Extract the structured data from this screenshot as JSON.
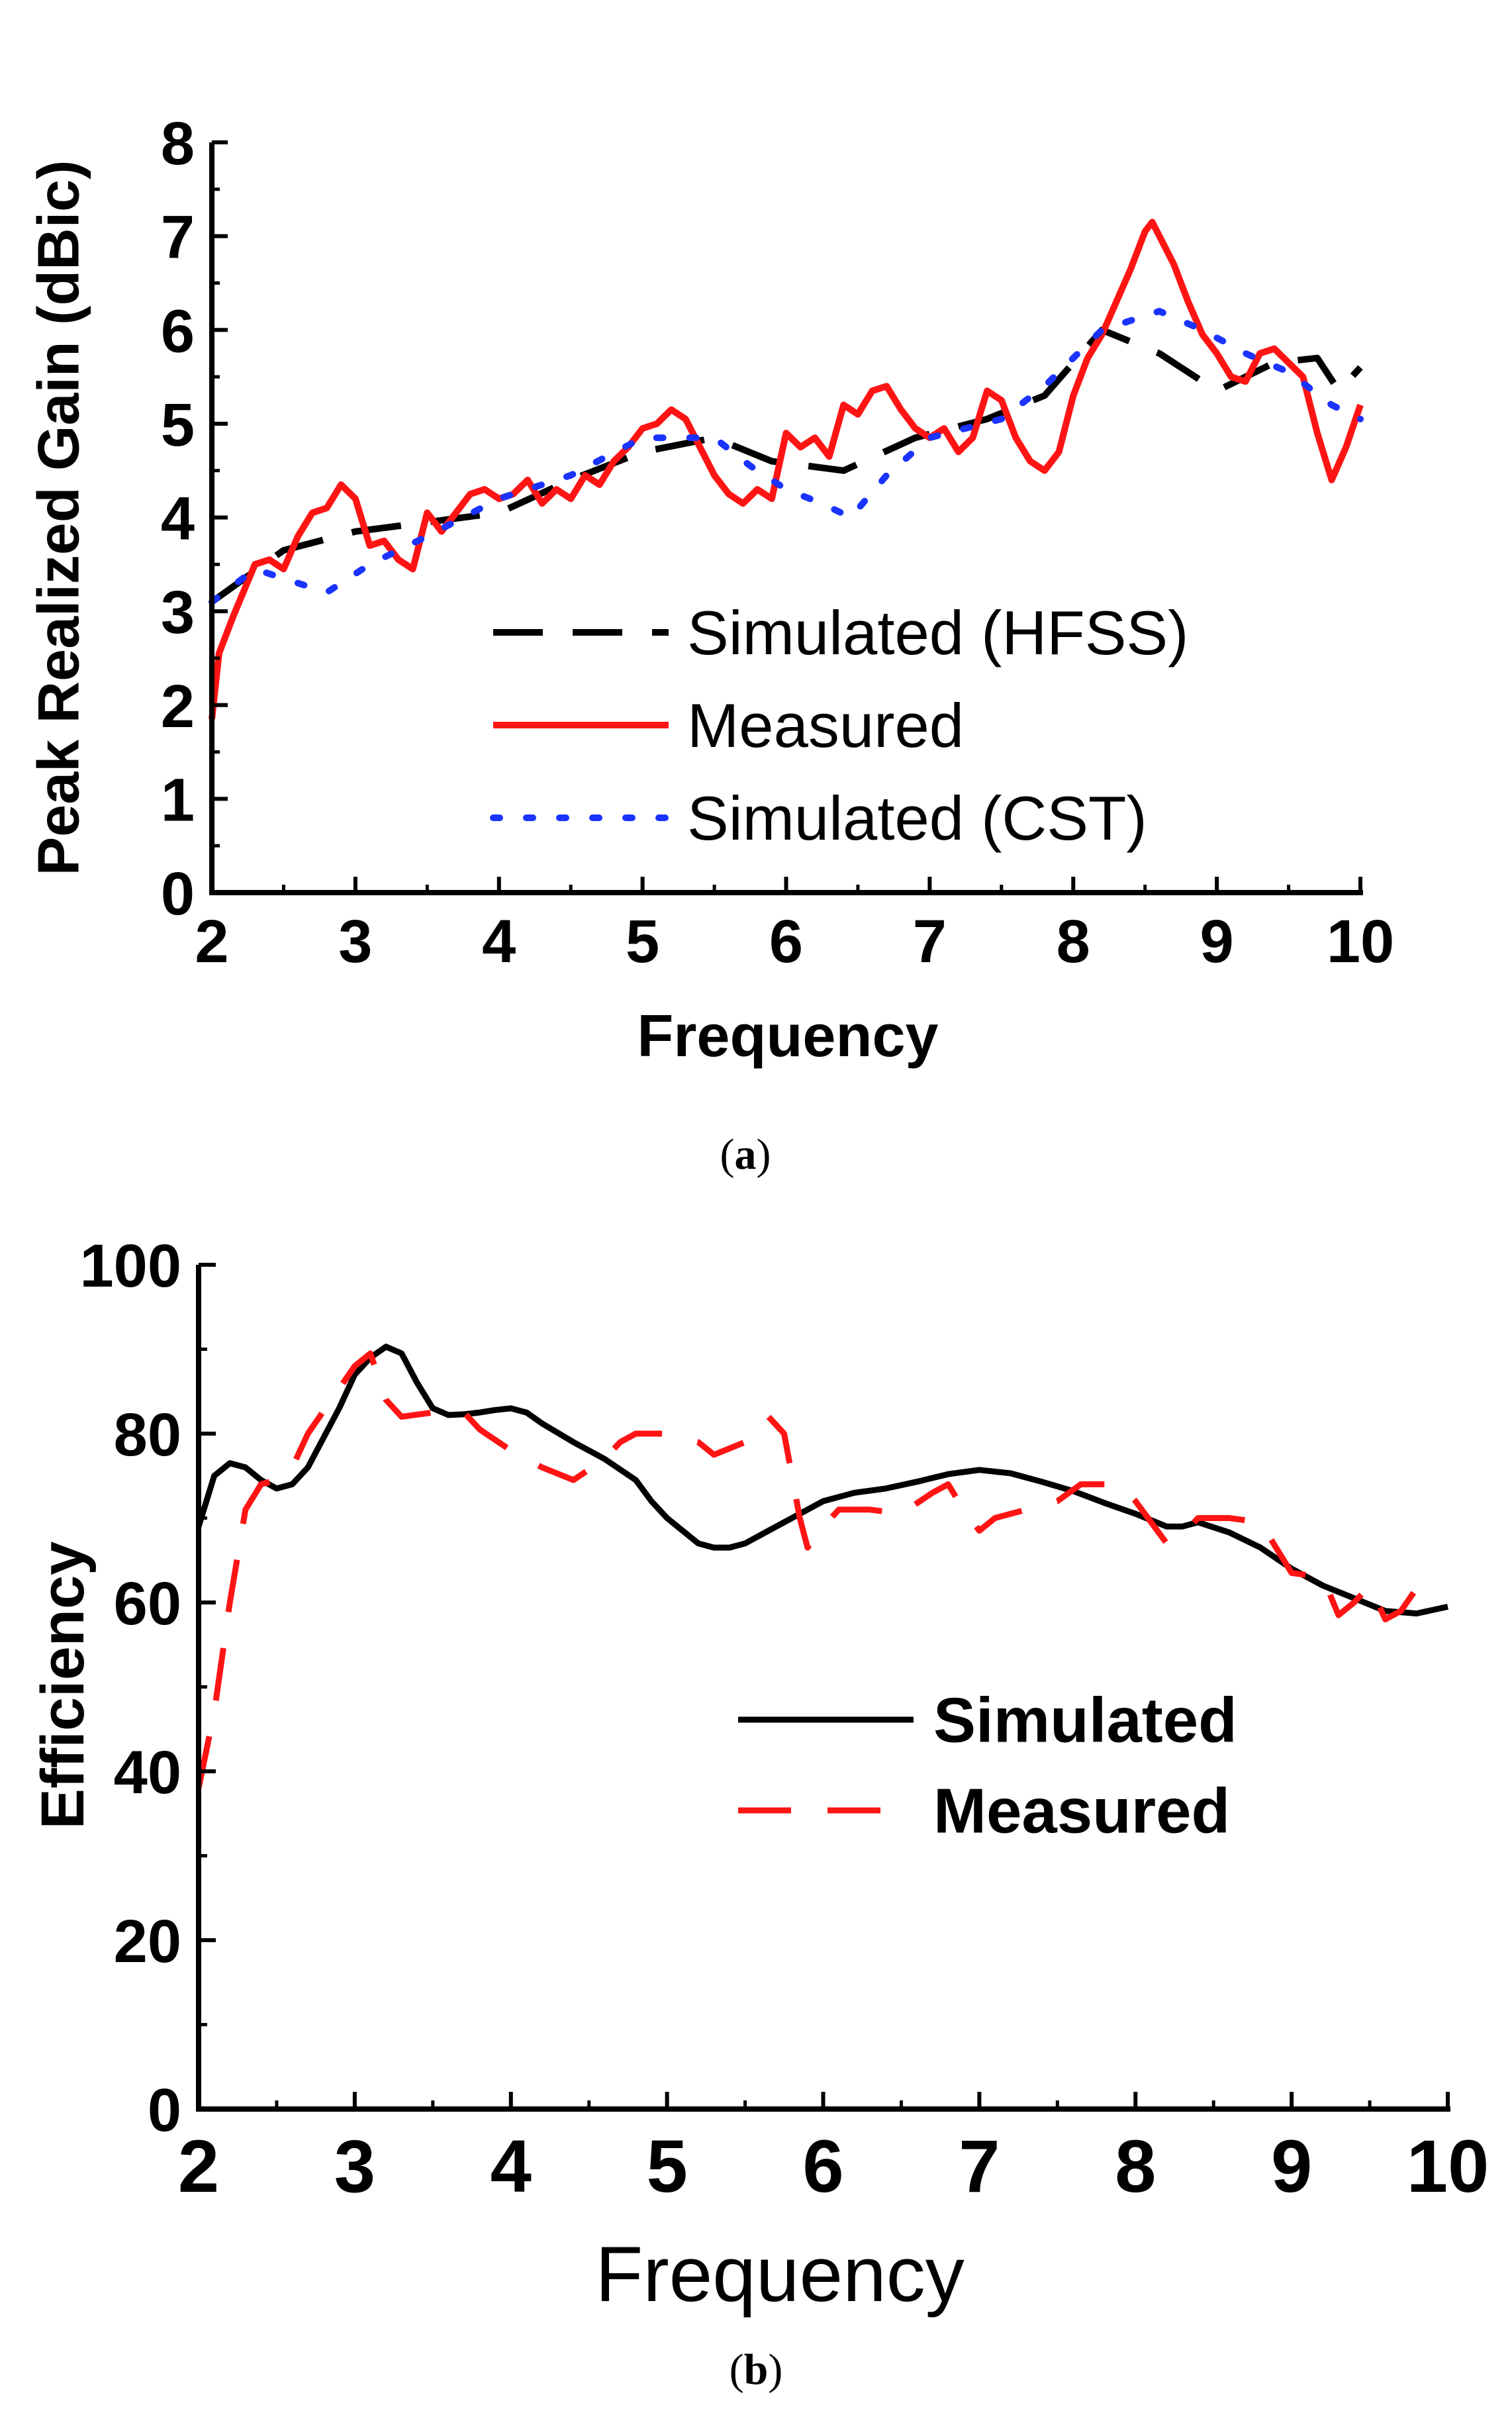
{
  "chart_data": [
    {
      "type": "line",
      "panel_label": "a",
      "xlabel": "Frequency",
      "ylabel": "Peak Realized Gain (dBic)",
      "xlim": [
        2,
        10
      ],
      "ylim": [
        0,
        8
      ],
      "xticks": [
        "2",
        "3",
        "4",
        "5",
        "6",
        "7",
        "8",
        "9",
        "10"
      ],
      "yticks": [
        "0",
        "1",
        "2",
        "3",
        "4",
        "5",
        "6",
        "7",
        "8"
      ],
      "legend_position": "center-right",
      "series": [
        {
          "name": "Simulated (HFSS)",
          "color": "#000000",
          "style": "dashed",
          "points": [
            [
              2.0,
              3.1
            ],
            [
              2.5,
              3.65
            ],
            [
              3.0,
              3.85
            ],
            [
              3.5,
              3.95
            ],
            [
              4.0,
              4.05
            ],
            [
              4.5,
              4.4
            ],
            [
              5.0,
              4.7
            ],
            [
              5.5,
              4.85
            ],
            [
              5.9,
              4.6
            ],
            [
              6.4,
              4.5
            ],
            [
              6.9,
              4.85
            ],
            [
              7.4,
              5.05
            ],
            [
              7.8,
              5.3
            ],
            [
              8.2,
              6.0
            ],
            [
              8.6,
              5.75
            ],
            [
              9.0,
              5.35
            ],
            [
              9.4,
              5.65
            ],
            [
              9.7,
              5.7
            ],
            [
              9.85,
              5.35
            ],
            [
              10.0,
              5.6
            ]
          ]
        },
        {
          "name": "Measured",
          "color": "#ff1414",
          "style": "solid",
          "points": [
            [
              2.0,
              1.85
            ],
            [
              2.05,
              2.55
            ],
            [
              2.15,
              2.95
            ],
            [
              2.3,
              3.5
            ],
            [
              2.4,
              3.55
            ],
            [
              2.5,
              3.45
            ],
            [
              2.6,
              3.8
            ],
            [
              2.7,
              4.05
            ],
            [
              2.8,
              4.1
            ],
            [
              2.9,
              4.35
            ],
            [
              3.0,
              4.2
            ],
            [
              3.1,
              3.7
            ],
            [
              3.2,
              3.75
            ],
            [
              3.3,
              3.55
            ],
            [
              3.4,
              3.45
            ],
            [
              3.5,
              4.05
            ],
            [
              3.6,
              3.85
            ],
            [
              3.7,
              4.05
            ],
            [
              3.8,
              4.25
            ],
            [
              3.9,
              4.3
            ],
            [
              4.0,
              4.2
            ],
            [
              4.1,
              4.25
            ],
            [
              4.2,
              4.4
            ],
            [
              4.3,
              4.15
            ],
            [
              4.4,
              4.3
            ],
            [
              4.5,
              4.2
            ],
            [
              4.6,
              4.45
            ],
            [
              4.7,
              4.35
            ],
            [
              4.8,
              4.6
            ],
            [
              4.9,
              4.75
            ],
            [
              5.0,
              4.95
            ],
            [
              5.1,
              5.0
            ],
            [
              5.2,
              5.15
            ],
            [
              5.3,
              5.05
            ],
            [
              5.4,
              4.75
            ],
            [
              5.5,
              4.45
            ],
            [
              5.6,
              4.25
            ],
            [
              5.7,
              4.15
            ],
            [
              5.8,
              4.3
            ],
            [
              5.9,
              4.2
            ],
            [
              6.0,
              4.9
            ],
            [
              6.1,
              4.75
            ],
            [
              6.2,
              4.85
            ],
            [
              6.3,
              4.65
            ],
            [
              6.4,
              5.2
            ],
            [
              6.5,
              5.1
            ],
            [
              6.6,
              5.35
            ],
            [
              6.7,
              5.4
            ],
            [
              6.8,
              5.15
            ],
            [
              6.9,
              4.95
            ],
            [
              7.0,
              4.85
            ],
            [
              7.1,
              4.95
            ],
            [
              7.2,
              4.7
            ],
            [
              7.3,
              4.85
            ],
            [
              7.4,
              5.35
            ],
            [
              7.5,
              5.25
            ],
            [
              7.6,
              4.85
            ],
            [
              7.7,
              4.6
            ],
            [
              7.8,
              4.5
            ],
            [
              7.9,
              4.7
            ],
            [
              8.0,
              5.3
            ],
            [
              8.1,
              5.7
            ],
            [
              8.2,
              5.95
            ],
            [
              8.3,
              6.3
            ],
            [
              8.4,
              6.65
            ],
            [
              8.5,
              7.05
            ],
            [
              8.55,
              7.15
            ],
            [
              8.6,
              7.0
            ],
            [
              8.7,
              6.7
            ],
            [
              8.8,
              6.3
            ],
            [
              8.9,
              5.95
            ],
            [
              9.0,
              5.75
            ],
            [
              9.1,
              5.5
            ],
            [
              9.2,
              5.45
            ],
            [
              9.3,
              5.75
            ],
            [
              9.4,
              5.8
            ],
            [
              9.5,
              5.65
            ],
            [
              9.6,
              5.5
            ],
            [
              9.7,
              4.9
            ],
            [
              9.8,
              4.4
            ],
            [
              9.9,
              4.75
            ],
            [
              10.0,
              5.2
            ]
          ]
        },
        {
          "name": "Simulated (CST)",
          "color": "#1a33ff",
          "style": "dotted",
          "points": [
            [
              2.0,
              3.1
            ],
            [
              2.3,
              3.45
            ],
            [
              2.6,
              3.3
            ],
            [
              2.8,
              3.2
            ],
            [
              3.1,
              3.5
            ],
            [
              3.5,
              3.8
            ],
            [
              4.0,
              4.2
            ],
            [
              4.5,
              4.45
            ],
            [
              5.0,
              4.85
            ],
            [
              5.5,
              4.85
            ],
            [
              5.75,
              4.55
            ],
            [
              6.0,
              4.3
            ],
            [
              6.25,
              4.15
            ],
            [
              6.45,
              4.0
            ],
            [
              6.7,
              4.45
            ],
            [
              7.0,
              4.85
            ],
            [
              7.5,
              5.05
            ],
            [
              7.8,
              5.4
            ],
            [
              8.2,
              6.0
            ],
            [
              8.6,
              6.2
            ],
            [
              8.9,
              6.0
            ],
            [
              9.2,
              5.75
            ],
            [
              9.5,
              5.55
            ],
            [
              9.8,
              5.2
            ],
            [
              10.0,
              5.05
            ]
          ]
        }
      ]
    },
    {
      "type": "line",
      "panel_label": "b",
      "xlabel": "Frequency",
      "ylabel": "Efficiency",
      "xlim": [
        2,
        10
      ],
      "ylim": [
        0,
        100
      ],
      "xticks": [
        "2",
        "3",
        "4",
        "5",
        "6",
        "7",
        "8",
        "9",
        "10"
      ],
      "yticks": [
        "0",
        "20",
        "40",
        "60",
        "80",
        "100"
      ],
      "legend_position": "center-right",
      "series": [
        {
          "name": "Simulated",
          "color": "#000000",
          "style": "solid",
          "points": [
            [
              2.0,
              69
            ],
            [
              2.1,
              75
            ],
            [
              2.2,
              76.5
            ],
            [
              2.3,
              76
            ],
            [
              2.4,
              74.5
            ],
            [
              2.5,
              73.5
            ],
            [
              2.6,
              74
            ],
            [
              2.7,
              76
            ],
            [
              2.8,
              79.5
            ],
            [
              2.9,
              83
            ],
            [
              3.0,
              87
            ],
            [
              3.1,
              89
            ],
            [
              3.2,
              90.3
            ],
            [
              3.3,
              89.5
            ],
            [
              3.4,
              86
            ],
            [
              3.5,
              83
            ],
            [
              3.6,
              82.2
            ],
            [
              3.7,
              82.3
            ],
            [
              3.8,
              82.5
            ],
            [
              3.9,
              82.8
            ],
            [
              4.0,
              83
            ],
            [
              4.1,
              82.5
            ],
            [
              4.2,
              81.2
            ],
            [
              4.4,
              79
            ],
            [
              4.6,
              77
            ],
            [
              4.8,
              74.5
            ],
            [
              4.9,
              72
            ],
            [
              5.0,
              70
            ],
            [
              5.1,
              68.5
            ],
            [
              5.2,
              67
            ],
            [
              5.3,
              66.5
            ],
            [
              5.4,
              66.5
            ],
            [
              5.5,
              67
            ],
            [
              5.6,
              68
            ],
            [
              5.8,
              70
            ],
            [
              6.0,
              72
            ],
            [
              6.2,
              73
            ],
            [
              6.4,
              73.5
            ],
            [
              6.6,
              74.3
            ],
            [
              6.8,
              75.2
            ],
            [
              7.0,
              75.7
            ],
            [
              7.2,
              75.3
            ],
            [
              7.4,
              74.3
            ],
            [
              7.6,
              73.2
            ],
            [
              7.8,
              71.8
            ],
            [
              8.0,
              70.5
            ],
            [
              8.2,
              69
            ],
            [
              8.3,
              69
            ],
            [
              8.4,
              69.5
            ],
            [
              8.6,
              68.3
            ],
            [
              8.8,
              66.5
            ],
            [
              9.0,
              64
            ],
            [
              9.2,
              62
            ],
            [
              9.4,
              60.5
            ],
            [
              9.6,
              59
            ],
            [
              9.8,
              58.7
            ],
            [
              10.0,
              59.5
            ]
          ]
        },
        {
          "name": "Measured",
          "color": "#ff1414",
          "style": "dashed",
          "points": [
            [
              2.0,
              38
            ],
            [
              2.1,
              47
            ],
            [
              2.2,
              60
            ],
            [
              2.3,
              71
            ],
            [
              2.4,
              74
            ],
            [
              2.5,
              74.5
            ],
            [
              2.6,
              76
            ],
            [
              2.7,
              80
            ],
            [
              2.85,
              84
            ],
            [
              3.0,
              88
            ],
            [
              3.1,
              89.5
            ],
            [
              3.2,
              84
            ],
            [
              3.3,
              82
            ],
            [
              3.5,
              82.5
            ],
            [
              3.7,
              82.5
            ],
            [
              3.8,
              80.5
            ],
            [
              4.0,
              78
            ],
            [
              4.2,
              76
            ],
            [
              4.4,
              74.5
            ],
            [
              4.6,
              77
            ],
            [
              4.7,
              79
            ],
            [
              4.8,
              80
            ],
            [
              5.0,
              80
            ],
            [
              5.2,
              79
            ],
            [
              5.3,
              77.5
            ],
            [
              5.5,
              79
            ],
            [
              5.65,
              82
            ],
            [
              5.75,
              80
            ],
            [
              5.85,
              70
            ],
            [
              5.9,
              66.5
            ],
            [
              6.0,
              69
            ],
            [
              6.1,
              71
            ],
            [
              6.3,
              71
            ],
            [
              6.5,
              70.5
            ],
            [
              6.7,
              73
            ],
            [
              6.8,
              74
            ],
            [
              6.9,
              71
            ],
            [
              7.0,
              68.5
            ],
            [
              7.1,
              70
            ],
            [
              7.3,
              71
            ],
            [
              7.5,
              72
            ],
            [
              7.65,
              74
            ],
            [
              7.9,
              74
            ],
            [
              8.0,
              72
            ],
            [
              8.2,
              67
            ],
            [
              8.3,
              68
            ],
            [
              8.4,
              70
            ],
            [
              8.6,
              70
            ],
            [
              8.8,
              69.5
            ],
            [
              9.0,
              63.5
            ],
            [
              9.2,
              63
            ],
            [
              9.3,
              58.5
            ],
            [
              9.4,
              60
            ],
            [
              9.5,
              62
            ],
            [
              9.6,
              58
            ],
            [
              9.7,
              59
            ],
            [
              9.85,
              63
            ]
          ]
        }
      ]
    }
  ],
  "captions": [
    "(a)",
    "(b)"
  ]
}
